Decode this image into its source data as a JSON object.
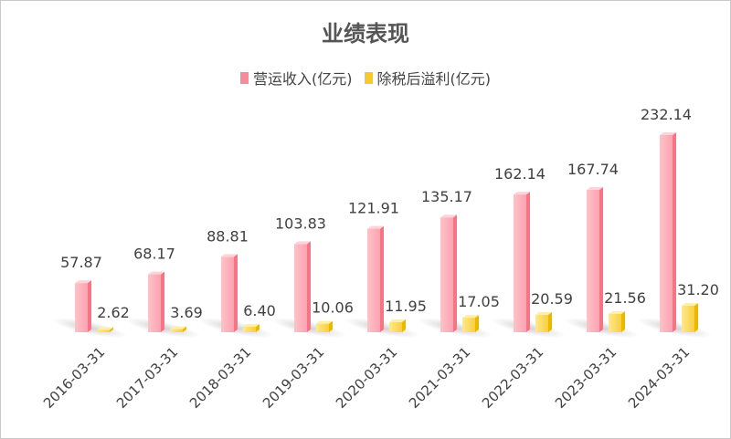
{
  "chart_data": {
    "type": "bar",
    "title": "业绩表现",
    "categories": [
      "2016-03-31",
      "2017-03-31",
      "2018-03-31",
      "2019-03-31",
      "2020-03-31",
      "2021-03-31",
      "2022-03-31",
      "2023-03-31",
      "2024-03-31"
    ],
    "series": [
      {
        "name": "营运收入(亿元)",
        "color": "#f98a99",
        "values": [
          57.87,
          68.17,
          88.81,
          103.83,
          121.91,
          135.17,
          162.14,
          167.74,
          232.14
        ]
      },
      {
        "name": "除税后溢利(亿元)",
        "color": "#f9c92a",
        "values": [
          2.62,
          3.69,
          6.4,
          10.06,
          11.95,
          17.05,
          20.59,
          21.56,
          31.2
        ]
      }
    ],
    "data_labels": [
      [
        "57.87",
        "68.17",
        "88.81",
        "103.83",
        "121.91",
        "135.17",
        "162.14",
        "167.74",
        "232.14"
      ],
      [
        "2.62",
        "3.69",
        "6.40",
        "10.06",
        "11.95",
        "17.05",
        "20.59",
        "21.56",
        "31.20"
      ]
    ],
    "legend_position": "top",
    "grid": false,
    "ylim": [
      0,
      240
    ]
  }
}
